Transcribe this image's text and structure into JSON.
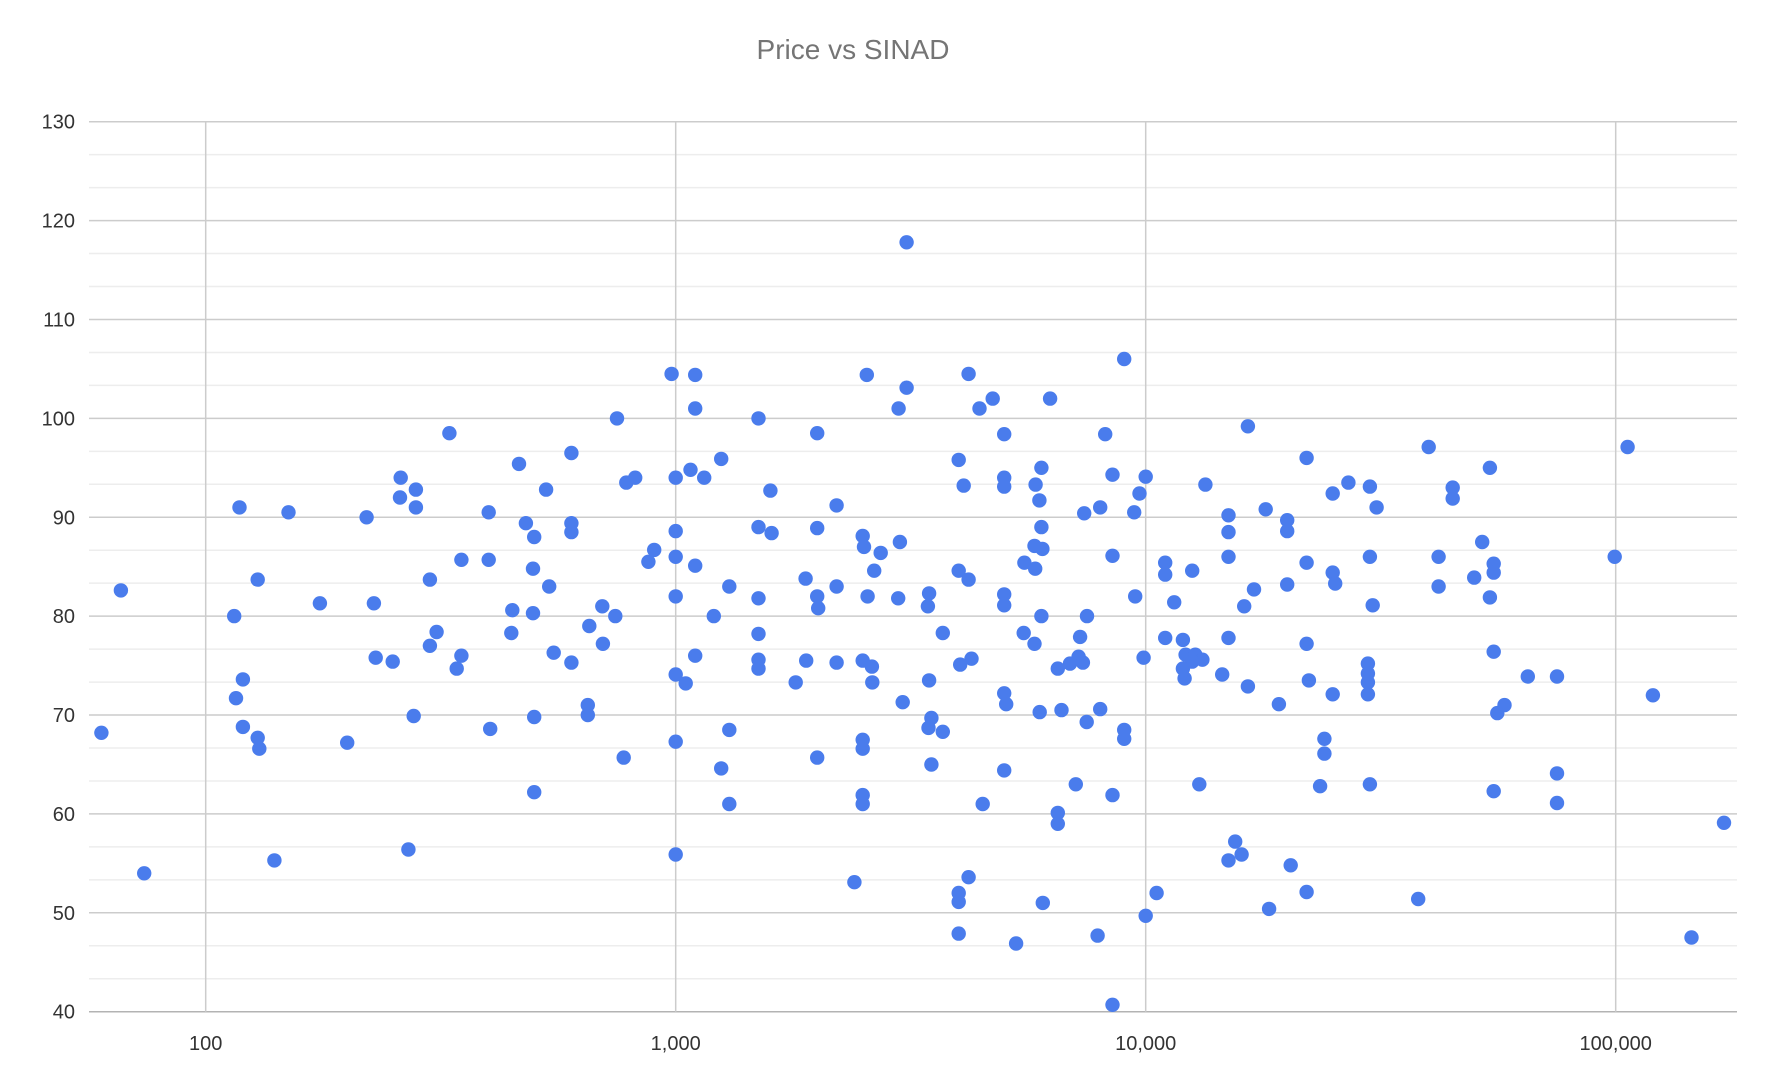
{
  "title": "Price vs SINAD",
  "colors": {
    "background": "#ffffff",
    "point": "#4a7cec",
    "major_grid": "#cccccc",
    "minor_grid": "#ededed",
    "axis_line": "#b3b3b3",
    "title": "#757575",
    "tick_label": "#333333"
  },
  "chart_data": {
    "type": "scatter",
    "title": "Price vs SINAD",
    "xlabel": "",
    "ylabel": "",
    "x_scale": "log",
    "xlim": [
      56,
      181000
    ],
    "ylim": [
      40,
      130
    ],
    "y_major_step": 10,
    "y_minor_per_major": 3,
    "grid": "major+minor horizontal, major vertical at decades",
    "legend": "none",
    "x_ticks": [
      {
        "value": 100,
        "label": "100"
      },
      {
        "value": 1000,
        "label": "1,000"
      },
      {
        "value": 10000,
        "label": "10,000"
      },
      {
        "value": 100000,
        "label": "100,000"
      }
    ],
    "y_ticks": [
      40,
      50,
      60,
      70,
      80,
      90,
      100,
      110,
      120,
      130
    ],
    "points": [
      [
        3100,
        117.8
      ],
      [
        9000,
        106
      ],
      [
        980,
        104.5
      ],
      [
        1100,
        104.4
      ],
      [
        2550,
        104.4
      ],
      [
        4200,
        104.5
      ],
      [
        3100,
        103.1
      ],
      [
        4725,
        102
      ],
      [
        6260,
        102
      ],
      [
        330,
        98.5
      ],
      [
        260,
        94
      ],
      [
        280,
        92.8
      ],
      [
        259,
        92
      ],
      [
        280,
        91
      ],
      [
        118,
        91
      ],
      [
        150,
        90.5
      ],
      [
        220,
        90
      ],
      [
        400,
        90.5
      ],
      [
        350,
        85.7
      ],
      [
        400,
        85.7
      ],
      [
        300,
        83.7
      ],
      [
        129,
        83.7
      ],
      [
        66,
        82.6
      ],
      [
        175,
        81.3
      ],
      [
        228,
        81.3
      ],
      [
        115,
        80
      ],
      [
        310,
        78.4
      ],
      [
        300,
        77
      ],
      [
        230,
        75.8
      ],
      [
        250,
        75.4
      ],
      [
        350,
        76
      ],
      [
        342,
        74.7
      ],
      [
        120,
        73.6
      ],
      [
        116,
        71.7
      ],
      [
        750,
        100
      ],
      [
        1100,
        101
      ],
      [
        1500,
        100
      ],
      [
        2980,
        101
      ],
      [
        2000,
        98.5
      ],
      [
        600,
        96.5
      ],
      [
        464,
        95.4
      ],
      [
        1250,
        95.9
      ],
      [
        1075,
        94.8
      ],
      [
        1000,
        94
      ],
      [
        1150,
        94
      ],
      [
        785,
        93.5
      ],
      [
        820,
        94
      ],
      [
        530,
        92.8
      ],
      [
        1590,
        92.7
      ],
      [
        2200,
        91.2
      ],
      [
        480,
        89.4
      ],
      [
        500,
        88
      ],
      [
        600,
        89.4
      ],
      [
        600,
        88.5
      ],
      [
        1000,
        88.6
      ],
      [
        1500,
        89
      ],
      [
        1600,
        88.4
      ],
      [
        2000,
        88.9
      ],
      [
        2500,
        88.1
      ],
      [
        2515,
        87
      ],
      [
        3000,
        87.5
      ],
      [
        2730,
        86.4
      ],
      [
        900,
        86.7
      ],
      [
        875,
        85.5
      ],
      [
        1000,
        86
      ],
      [
        1100,
        85.1
      ],
      [
        497,
        84.8
      ],
      [
        2645,
        84.6
      ],
      [
        538,
        83
      ],
      [
        1890,
        83.8
      ],
      [
        2200,
        83
      ],
      [
        1300,
        83
      ],
      [
        1000,
        82
      ],
      [
        1500,
        81.8
      ],
      [
        2000,
        82
      ],
      [
        2010,
        80.8
      ],
      [
        2560,
        82
      ],
      [
        2975,
        81.8
      ],
      [
        3460,
        82.3
      ],
      [
        3440,
        81
      ],
      [
        698,
        81
      ],
      [
        449,
        80.6
      ],
      [
        497,
        80.3
      ],
      [
        744,
        80
      ],
      [
        1205,
        80
      ],
      [
        655,
        79
      ],
      [
        447,
        78.3
      ],
      [
        1500,
        78.2
      ],
      [
        700,
        77.2
      ],
      [
        550,
        76.3
      ],
      [
        1100,
        76
      ],
      [
        600,
        75.3
      ],
      [
        1500,
        75.6
      ],
      [
        1500,
        74.7
      ],
      [
        1895,
        75.5
      ],
      [
        2200,
        75.3
      ],
      [
        2500,
        75.5
      ],
      [
        2615,
        74.9
      ],
      [
        1000,
        74.1
      ],
      [
        1050,
        73.2
      ],
      [
        1800,
        73.3
      ],
      [
        2620,
        73.3
      ],
      [
        3460,
        73.5
      ],
      [
        650,
        71
      ],
      [
        3040,
        71.3
      ],
      [
        4430,
        101
      ],
      [
        5000,
        98.4
      ],
      [
        8200,
        98.4
      ],
      [
        16500,
        99.2
      ],
      [
        4000,
        95.8
      ],
      [
        22000,
        96
      ],
      [
        6000,
        95
      ],
      [
        8500,
        94.3
      ],
      [
        10000,
        94.1
      ],
      [
        4100,
        93.2
      ],
      [
        5000,
        94
      ],
      [
        5000,
        93.1
      ],
      [
        5830,
        93.3
      ],
      [
        5940,
        91.7
      ],
      [
        9700,
        92.4
      ],
      [
        13400,
        93.3
      ],
      [
        25000,
        92.4
      ],
      [
        27000,
        93.5
      ],
      [
        30000,
        93.1
      ],
      [
        7400,
        90.4
      ],
      [
        8000,
        91
      ],
      [
        9450,
        90.5
      ],
      [
        15000,
        90.2
      ],
      [
        15000,
        88.5
      ],
      [
        18000,
        90.8
      ],
      [
        20000,
        89.7
      ],
      [
        20000,
        88.6
      ],
      [
        6000,
        89
      ],
      [
        5800,
        87.1
      ],
      [
        6030,
        86.8
      ],
      [
        8500,
        86.1
      ],
      [
        15000,
        86
      ],
      [
        30000,
        86
      ],
      [
        5520,
        85.4
      ],
      [
        5820,
        84.8
      ],
      [
        11000,
        85.4
      ],
      [
        11000,
        84.2
      ],
      [
        12560,
        84.6
      ],
      [
        4000,
        84.6
      ],
      [
        4200,
        83.7
      ],
      [
        22000,
        85.4
      ],
      [
        25000,
        84.4
      ],
      [
        25300,
        83.3
      ],
      [
        20000,
        83.2
      ],
      [
        17000,
        82.7
      ],
      [
        5000,
        82.2
      ],
      [
        5000,
        81.1
      ],
      [
        9500,
        82
      ],
      [
        11500,
        81.4
      ],
      [
        16200,
        81
      ],
      [
        30400,
        81.1
      ],
      [
        6000,
        80
      ],
      [
        7500,
        80
      ],
      [
        3700,
        78.3
      ],
      [
        5500,
        78.3
      ],
      [
        5800,
        77.2
      ],
      [
        11000,
        77.8
      ],
      [
        12000,
        77.6
      ],
      [
        15000,
        77.8
      ],
      [
        7250,
        77.9
      ],
      [
        22000,
        77.2
      ],
      [
        9900,
        75.8
      ],
      [
        12160,
        76.1
      ],
      [
        12750,
        76.1
      ],
      [
        13200,
        75.6
      ],
      [
        4260,
        75.7
      ],
      [
        4030,
        75.1
      ],
      [
        7200,
        75.9
      ],
      [
        6900,
        75.2
      ],
      [
        6500,
        74.7
      ],
      [
        7350,
        75.3
      ],
      [
        12560,
        75.4
      ],
      [
        12000,
        74.7
      ],
      [
        12100,
        73.7
      ],
      [
        14550,
        74.1
      ],
      [
        16500,
        72.9
      ],
      [
        19200,
        71.1
      ],
      [
        22250,
        73.5
      ],
      [
        25000,
        72.1
      ],
      [
        29700,
        75.2
      ],
      [
        29700,
        74.2
      ],
      [
        29700,
        73.3
      ],
      [
        29700,
        72.1
      ],
      [
        5000,
        72.2
      ],
      [
        5050,
        71.1
      ],
      [
        40000,
        97.1
      ],
      [
        106000,
        97.1
      ],
      [
        54000,
        95
      ],
      [
        45000,
        93
      ],
      [
        45000,
        91.9
      ],
      [
        31000,
        91
      ],
      [
        52000,
        87.5
      ],
      [
        42000,
        86
      ],
      [
        99500,
        86
      ],
      [
        55000,
        85.3
      ],
      [
        55000,
        84.4
      ],
      [
        50000,
        83.9
      ],
      [
        42000,
        83
      ],
      [
        54000,
        81.9
      ],
      [
        55000,
        76.4
      ],
      [
        65000,
        73.9
      ],
      [
        75000,
        73.9
      ],
      [
        58000,
        71
      ],
      [
        120000,
        72
      ],
      [
        60,
        68.2
      ],
      [
        120,
        68.8
      ],
      [
        129,
        67.7
      ],
      [
        130,
        66.6
      ],
      [
        200,
        67.2
      ],
      [
        277,
        69.9
      ],
      [
        403,
        68.6
      ],
      [
        140,
        55.3
      ],
      [
        74,
        54
      ],
      [
        270,
        56.4
      ],
      [
        500,
        69.8
      ],
      [
        650,
        70
      ],
      [
        1000,
        67.3
      ],
      [
        775,
        65.7
      ],
      [
        1300,
        68.5
      ],
      [
        1250,
        64.6
      ],
      [
        500,
        62.2
      ],
      [
        1300,
        61
      ],
      [
        2000,
        65.7
      ],
      [
        2500,
        67.5
      ],
      [
        2500,
        66.6
      ],
      [
        2500,
        61.9
      ],
      [
        2500,
        61
      ],
      [
        3500,
        69.7
      ],
      [
        3450,
        68.7
      ],
      [
        3500,
        65
      ],
      [
        1000,
        55.9
      ],
      [
        2400,
        53.1
      ],
      [
        5950,
        70.3
      ],
      [
        6620,
        70.5
      ],
      [
        8000,
        70.6
      ],
      [
        7490,
        69.3
      ],
      [
        9000,
        68.5
      ],
      [
        9000,
        67.6
      ],
      [
        3700,
        68.3
      ],
      [
        5000,
        64.4
      ],
      [
        7100,
        63
      ],
      [
        8500,
        61.9
      ],
      [
        4500,
        61
      ],
      [
        6500,
        60.1
      ],
      [
        6500,
        59
      ],
      [
        13000,
        63
      ],
      [
        15500,
        57.2
      ],
      [
        16000,
        55.9
      ],
      [
        15000,
        55.3
      ],
      [
        20350,
        54.8
      ],
      [
        4200,
        53.6
      ],
      [
        4000,
        52
      ],
      [
        4000,
        51.1
      ],
      [
        6040,
        51
      ],
      [
        10550,
        52
      ],
      [
        10000,
        49.7
      ],
      [
        18300,
        50.4
      ],
      [
        22000,
        52.1
      ],
      [
        4000,
        47.9
      ],
      [
        5300,
        46.9
      ],
      [
        7900,
        47.7
      ],
      [
        8500,
        40.7
      ],
      [
        24000,
        67.6
      ],
      [
        24000,
        66.1
      ],
      [
        23500,
        62.8
      ],
      [
        30000,
        63
      ],
      [
        56000,
        70.2
      ],
      [
        75000,
        64.1
      ],
      [
        55000,
        62.3
      ],
      [
        75000,
        61.1
      ],
      [
        170000,
        59.1
      ],
      [
        38000,
        51.4
      ],
      [
        145000,
        47.5
      ]
    ]
  }
}
